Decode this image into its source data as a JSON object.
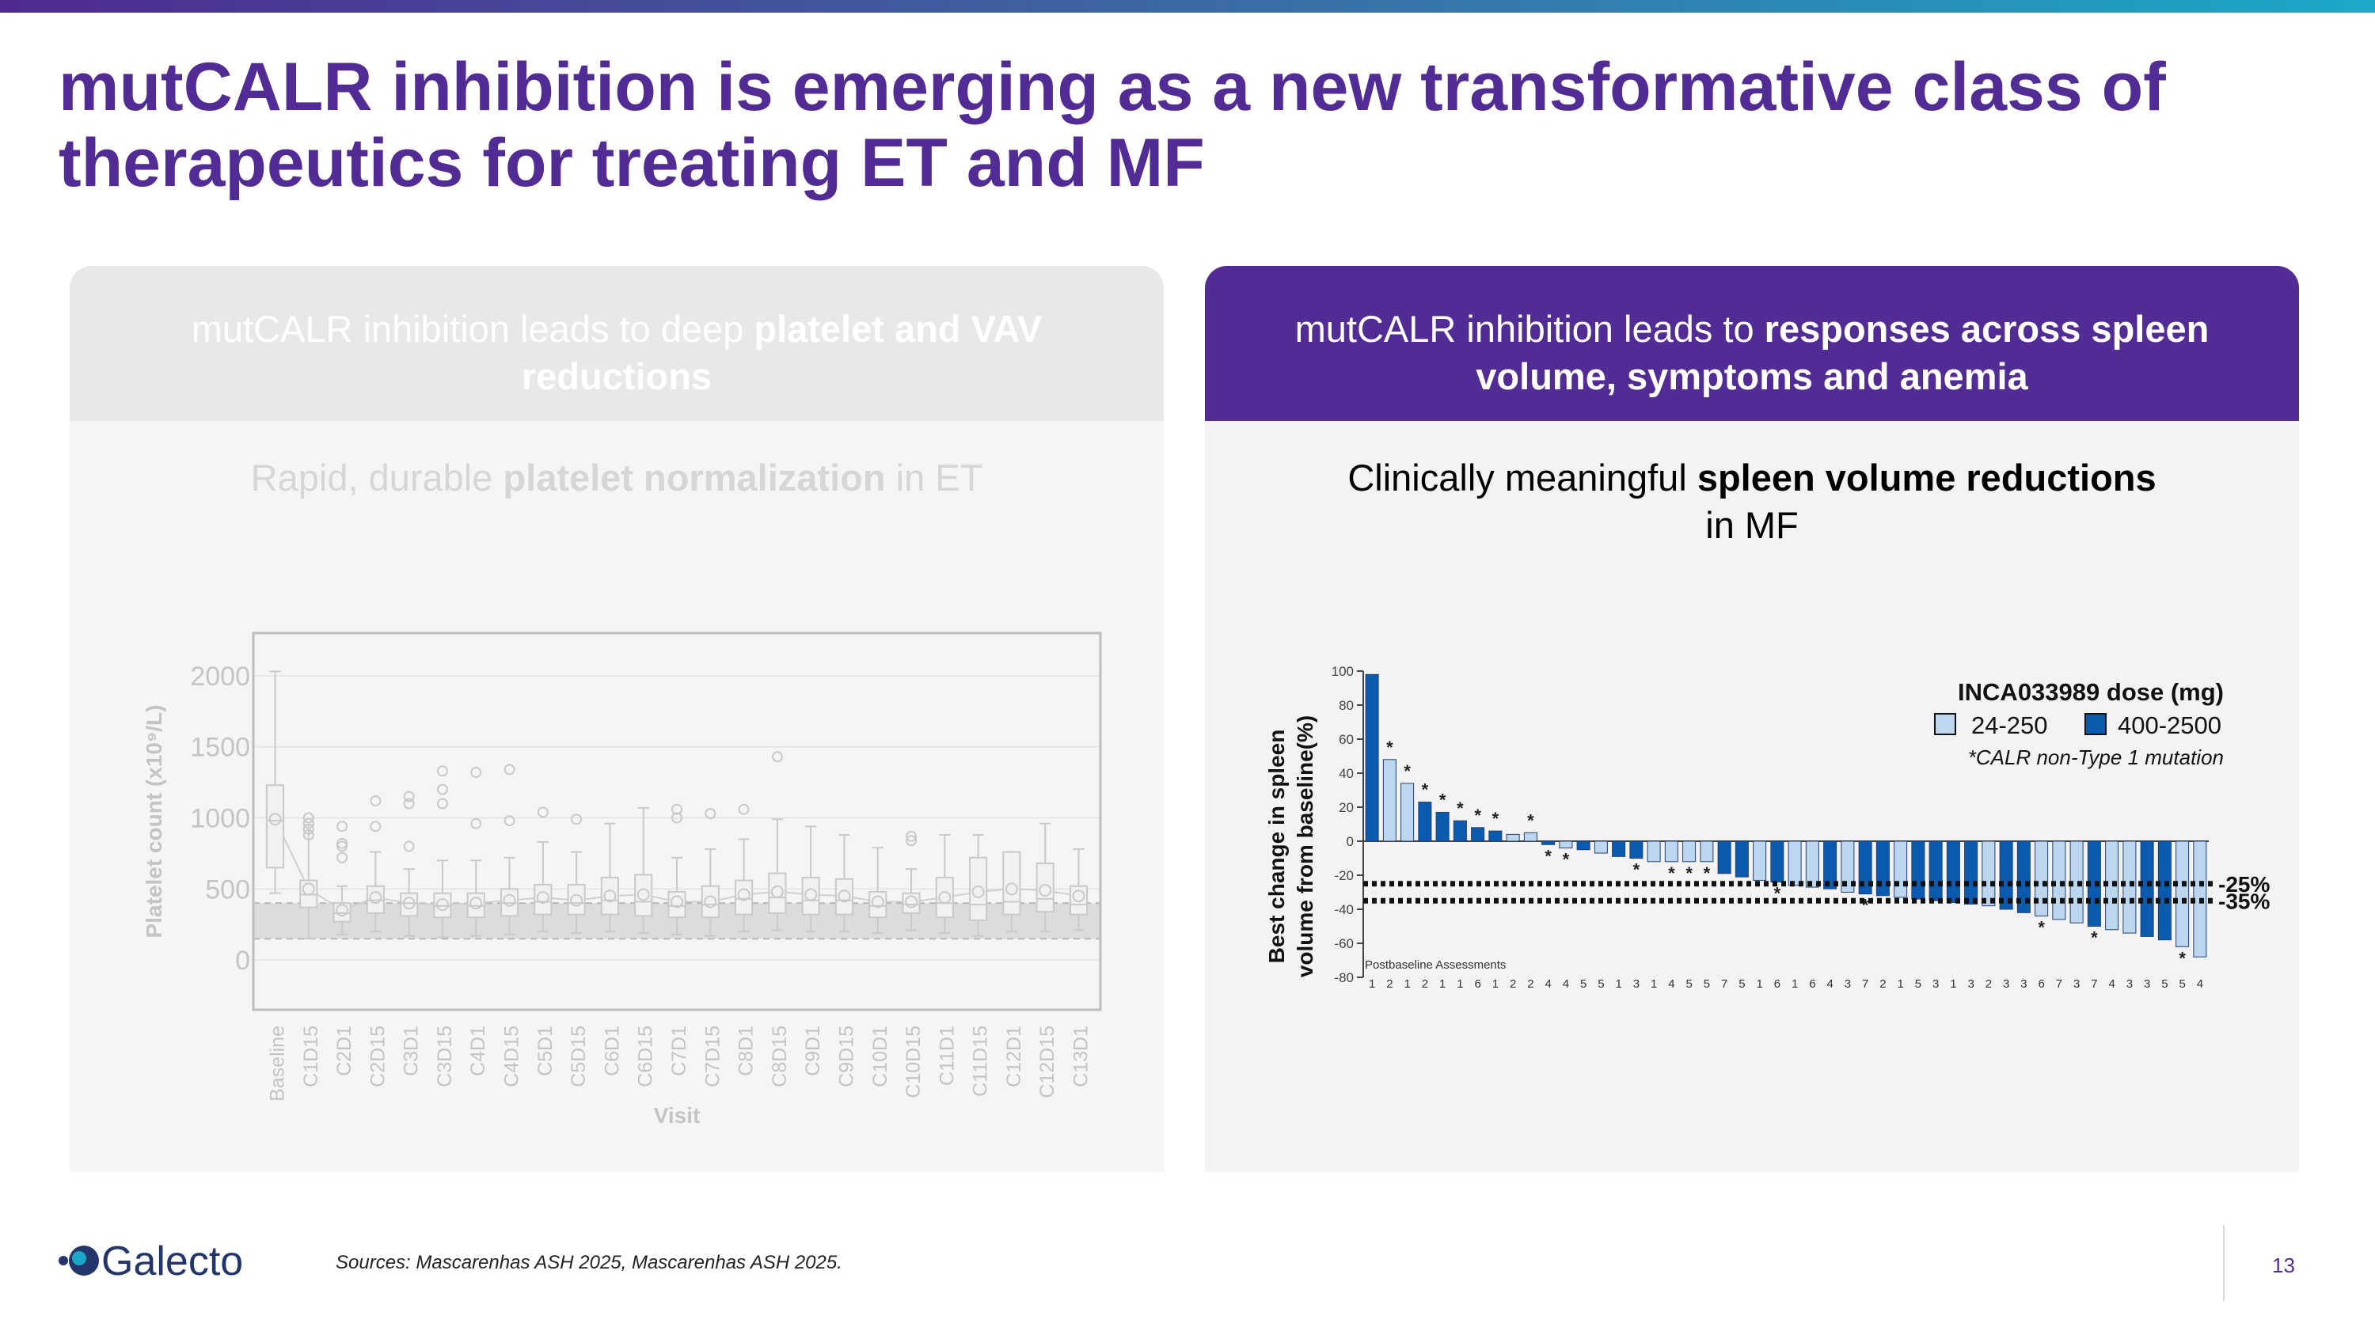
{
  "slide": {
    "title": "mutCALR inhibition is emerging as a new transformative class of therapeutics for treating ET and MF",
    "page_number": "13",
    "sources": "Sources: Mascarenhas ASH 2025, Mascarenhas ASH 2025.",
    "logo": "Galecto",
    "colors": {
      "title": "#512c95",
      "accent_dark": "#0a5ab0",
      "accent_light": "#bcd6f0"
    }
  },
  "left_panel": {
    "header_plain": "mutCALR inhibition leads to deep ",
    "header_bold": "platelet and VAV reductions",
    "subtitle_pre": "Rapid, durable ",
    "subtitle_bold": "platelet normalization",
    "subtitle_post": " in ET"
  },
  "right_panel": {
    "header_plain": "mutCALR inhibition leads to ",
    "header_bold": "responses across spleen volume, symptoms and anemia",
    "subtitle_pre": "Clinically meaningful ",
    "subtitle_bold": "spleen volume reductions",
    "subtitle_post": " in MF"
  },
  "chart_data": [
    {
      "type": "box",
      "xlabel": "Visit",
      "ylabel": "Platelet count (x10⁹/L)",
      "y_ticks": [
        0,
        500,
        1000,
        1500,
        2000
      ],
      "ylim": [
        -350,
        2300
      ],
      "reference_band": [
        150,
        400
      ],
      "categories": [
        "Baseline",
        "C1D15",
        "C2D1",
        "C2D15",
        "C3D1",
        "C3D15",
        "C4D1",
        "C4D15",
        "C5D1",
        "C5D15",
        "C6D1",
        "C6D15",
        "C7D1",
        "C7D15",
        "C8D1",
        "C8D15",
        "C9D1",
        "C9D15",
        "C10D1",
        "C10D15",
        "C11D1",
        "C11D15",
        "C12D1",
        "C12D15",
        "C13D1"
      ],
      "boxes": [
        {
          "q1": 650,
          "median": 980,
          "q3": 1230,
          "min": 470,
          "max": 2030,
          "mean": 990
        },
        {
          "q1": 370,
          "median": 460,
          "q3": 560,
          "min": 150,
          "max": 950,
          "mean": 500
        },
        {
          "q1": 270,
          "median": 330,
          "q3": 400,
          "min": 180,
          "max": 520,
          "mean": 350
        },
        {
          "q1": 330,
          "median": 420,
          "q3": 520,
          "min": 200,
          "max": 760,
          "mean": 440
        },
        {
          "q1": 310,
          "median": 400,
          "q3": 470,
          "min": 170,
          "max": 640,
          "mean": 400
        },
        {
          "q1": 300,
          "median": 380,
          "q3": 470,
          "min": 160,
          "max": 700,
          "mean": 390
        },
        {
          "q1": 300,
          "median": 380,
          "q3": 470,
          "min": 170,
          "max": 700,
          "mean": 400
        },
        {
          "q1": 310,
          "median": 400,
          "q3": 500,
          "min": 180,
          "max": 720,
          "mean": 420
        },
        {
          "q1": 320,
          "median": 410,
          "q3": 530,
          "min": 200,
          "max": 830,
          "mean": 440
        },
        {
          "q1": 320,
          "median": 400,
          "q3": 530,
          "min": 190,
          "max": 760,
          "mean": 420
        },
        {
          "q1": 320,
          "median": 420,
          "q3": 580,
          "min": 200,
          "max": 960,
          "mean": 450
        },
        {
          "q1": 310,
          "median": 410,
          "q3": 600,
          "min": 190,
          "max": 1070,
          "mean": 460
        },
        {
          "q1": 300,
          "median": 380,
          "q3": 480,
          "min": 180,
          "max": 720,
          "mean": 410
        },
        {
          "q1": 300,
          "median": 390,
          "q3": 520,
          "min": 170,
          "max": 780,
          "mean": 410
        },
        {
          "q1": 320,
          "median": 430,
          "q3": 560,
          "min": 200,
          "max": 850,
          "mean": 460
        },
        {
          "q1": 330,
          "median": 440,
          "q3": 610,
          "min": 210,
          "max": 990,
          "mean": 480
        },
        {
          "q1": 320,
          "median": 420,
          "q3": 580,
          "min": 200,
          "max": 940,
          "mean": 460
        },
        {
          "q1": 320,
          "median": 420,
          "q3": 570,
          "min": 200,
          "max": 880,
          "mean": 450
        },
        {
          "q1": 300,
          "median": 380,
          "q3": 480,
          "min": 190,
          "max": 790,
          "mean": 410
        },
        {
          "q1": 330,
          "median": 390,
          "q3": 470,
          "min": 210,
          "max": 640,
          "mean": 410
        },
        {
          "q1": 300,
          "median": 400,
          "q3": 580,
          "min": 190,
          "max": 880,
          "mean": 440
        },
        {
          "q1": 280,
          "median": 390,
          "q3": 720,
          "min": 170,
          "max": 880,
          "mean": 480
        },
        {
          "q1": 320,
          "median": 410,
          "q3": 760,
          "min": 200,
          "max": 760,
          "mean": 500
        },
        {
          "q1": 340,
          "median": 430,
          "q3": 680,
          "min": 200,
          "max": 960,
          "mean": 490
        },
        {
          "q1": 320,
          "median": 390,
          "q3": 520,
          "min": 210,
          "max": 780,
          "mean": 450
        }
      ],
      "outliers": [
        {
          "x": 1,
          "y": 1000
        },
        {
          "x": 1,
          "y": 960
        },
        {
          "x": 1,
          "y": 920
        },
        {
          "x": 1,
          "y": 880
        },
        {
          "x": 2,
          "y": 940
        },
        {
          "x": 2,
          "y": 820
        },
        {
          "x": 2,
          "y": 800
        },
        {
          "x": 2,
          "y": 720
        },
        {
          "x": 3,
          "y": 1120
        },
        {
          "x": 3,
          "y": 940
        },
        {
          "x": 4,
          "y": 1150
        },
        {
          "x": 4,
          "y": 1100
        },
        {
          "x": 4,
          "y": 800
        },
        {
          "x": 5,
          "y": 1330
        },
        {
          "x": 5,
          "y": 1200
        },
        {
          "x": 5,
          "y": 1100
        },
        {
          "x": 6,
          "y": 1320
        },
        {
          "x": 6,
          "y": 960
        },
        {
          "x": 7,
          "y": 1340
        },
        {
          "x": 7,
          "y": 980
        },
        {
          "x": 8,
          "y": 1040
        },
        {
          "x": 9,
          "y": 990
        },
        {
          "x": 12,
          "y": 1060
        },
        {
          "x": 12,
          "y": 1000
        },
        {
          "x": 13,
          "y": 1030
        },
        {
          "x": 14,
          "y": 1060
        },
        {
          "x": 15,
          "y": 1430
        },
        {
          "x": 19,
          "y": 870
        },
        {
          "x": 19,
          "y": 840
        }
      ]
    },
    {
      "type": "bar",
      "xlabel": "Postbaseline Assessments",
      "ylabel": "Best change in spleen volume from baseline(%)",
      "y_ticks": [
        100,
        80,
        60,
        40,
        20,
        0,
        -20,
        -40,
        -60,
        -80
      ],
      "ylim": [
        -80,
        100
      ],
      "reference_lines": [
        {
          "value": -25,
          "label": "-25%"
        },
        {
          "value": -35,
          "label": "-35%"
        }
      ],
      "legend_title": "INCA033989 dose (mg)",
      "legend_note": "*CALR non-Type 1 mutation",
      "series": [
        {
          "name": "24-250",
          "color": "#bcd6f0"
        },
        {
          "name": "400-2500",
          "color": "#0a5ab0"
        }
      ],
      "values": [
        98,
        48,
        34,
        23,
        17,
        12,
        8,
        6,
        4,
        5,
        -2,
        -4,
        -5,
        -7,
        -9,
        -10,
        -12,
        -12,
        -12,
        -12,
        -19,
        -21,
        -23,
        -24,
        -26,
        -27,
        -28,
        -30,
        -31,
        -32,
        -33,
        -34,
        -35,
        -36,
        -37,
        -38,
        -40,
        -42,
        -44,
        -46,
        -48,
        -50,
        -52,
        -54,
        -56,
        -58,
        -62,
        -68
      ],
      "groups": [
        "400-2500",
        "24-250",
        "24-250",
        "400-2500",
        "400-2500",
        "400-2500",
        "400-2500",
        "400-2500",
        "24-250",
        "24-250",
        "400-2500",
        "24-250",
        "400-2500",
        "24-250",
        "400-2500",
        "400-2500",
        "24-250",
        "24-250",
        "24-250",
        "24-250",
        "400-2500",
        "400-2500",
        "24-250",
        "400-2500",
        "24-250",
        "24-250",
        "400-2500",
        "24-250",
        "400-2500",
        "400-2500",
        "24-250",
        "400-2500",
        "400-2500",
        "400-2500",
        "400-2500",
        "24-250",
        "400-2500",
        "400-2500",
        "24-250",
        "24-250",
        "24-250",
        "400-2500",
        "24-250",
        "24-250",
        "400-2500",
        "400-2500",
        "24-250",
        "24-250"
      ],
      "asterisks": [
        1,
        2,
        3,
        4,
        5,
        6,
        7,
        9,
        10,
        11,
        15,
        17,
        18,
        19,
        23,
        28,
        38,
        41,
        46
      ],
      "assessments": [
        "1",
        "2",
        "1",
        "2",
        "1",
        "1",
        "6",
        "1",
        "2",
        "2",
        "4",
        "4",
        "5",
        "5",
        "1",
        "3",
        "1",
        "4",
        "5",
        "5",
        "7",
        "5",
        "1",
        "6",
        "1",
        "6",
        "4",
        "3",
        "7",
        "2",
        "1",
        "5",
        "3",
        "1",
        "3",
        "2",
        "3",
        "3",
        "6",
        "7",
        "3",
        "7",
        "4",
        "3",
        "3",
        "5",
        "5",
        "4"
      ]
    }
  ]
}
